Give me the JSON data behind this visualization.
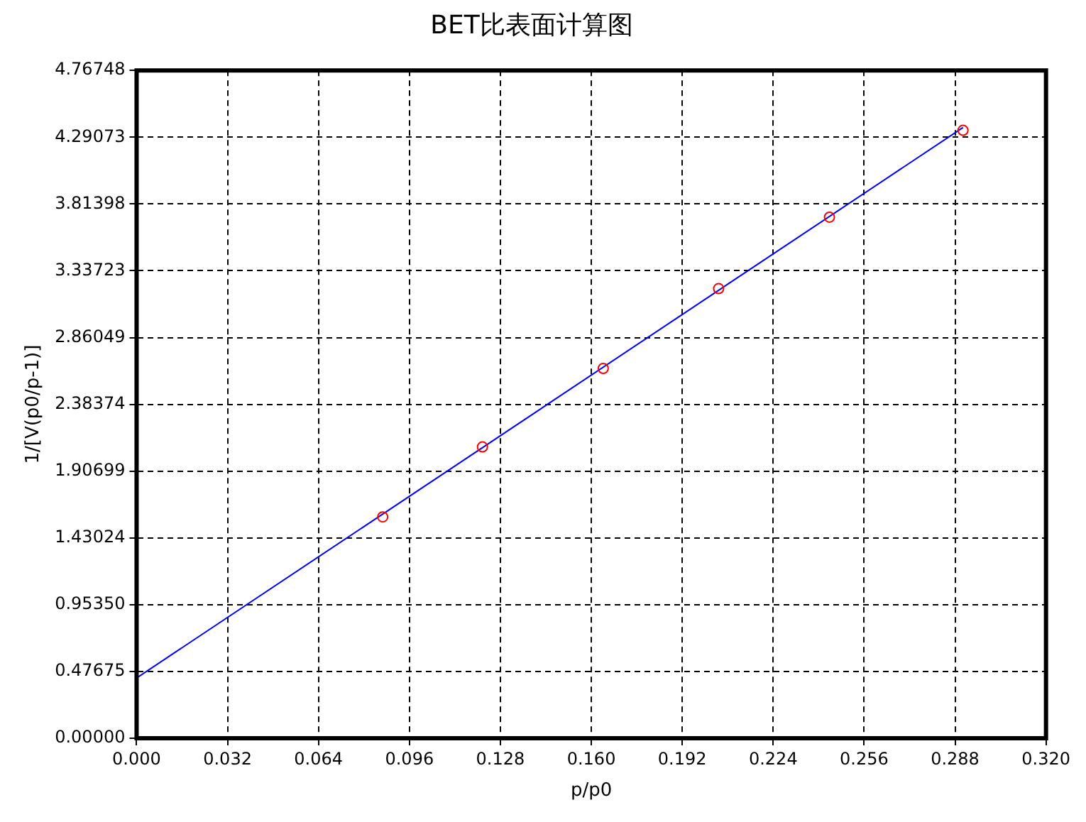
{
  "chart_data": {
    "type": "scatter",
    "title": "BET比表面计算图",
    "xlabel": "p/p0",
    "ylabel": "1/[V(p0/p-1)]",
    "xlim": [
      0,
      0.32
    ],
    "ylim": [
      0,
      4.76748
    ],
    "xticks": [
      {
        "value": 0,
        "label": "0.000"
      },
      {
        "value": 0.032,
        "label": "0.032"
      },
      {
        "value": 0.064,
        "label": "0.064"
      },
      {
        "value": 0.096,
        "label": "0.096"
      },
      {
        "value": 0.128,
        "label": "0.128"
      },
      {
        "value": 0.16,
        "label": "0.160"
      },
      {
        "value": 0.192,
        "label": "0.192"
      },
      {
        "value": 0.224,
        "label": "0.224"
      },
      {
        "value": 0.256,
        "label": "0.256"
      },
      {
        "value": 0.288,
        "label": "0.288"
      },
      {
        "value": 0.32,
        "label": "0.320"
      }
    ],
    "yticks": [
      {
        "value": 0,
        "label": "0.00000"
      },
      {
        "value": 0.47675,
        "label": "0.47675"
      },
      {
        "value": 0.9535,
        "label": "0.95350"
      },
      {
        "value": 1.43024,
        "label": "1.43024"
      },
      {
        "value": 1.90699,
        "label": "1.90699"
      },
      {
        "value": 2.38374,
        "label": "2.38374"
      },
      {
        "value": 2.86049,
        "label": "2.86049"
      },
      {
        "value": 3.33723,
        "label": "3.33723"
      },
      {
        "value": 3.81398,
        "label": "3.81398"
      },
      {
        "value": 4.29073,
        "label": "4.29073"
      },
      {
        "value": 4.76748,
        "label": "4.76748"
      }
    ],
    "grid": true,
    "legend": false,
    "series": [
      {
        "type": "scatter",
        "color": "#ff0000",
        "marker": "circle",
        "x": [
          0.0866,
          0.1217,
          0.1642,
          0.2048,
          0.2438,
          0.2908
        ],
        "values": [
          1.58,
          2.08,
          2.64,
          3.21,
          3.72,
          4.34
        ]
      },
      {
        "type": "line",
        "color": "#0000ff",
        "marker": "none",
        "line_style": "solid",
        "x": [
          0,
          0.2908
        ],
        "values": [
          0.43,
          4.36
        ]
      }
    ]
  }
}
